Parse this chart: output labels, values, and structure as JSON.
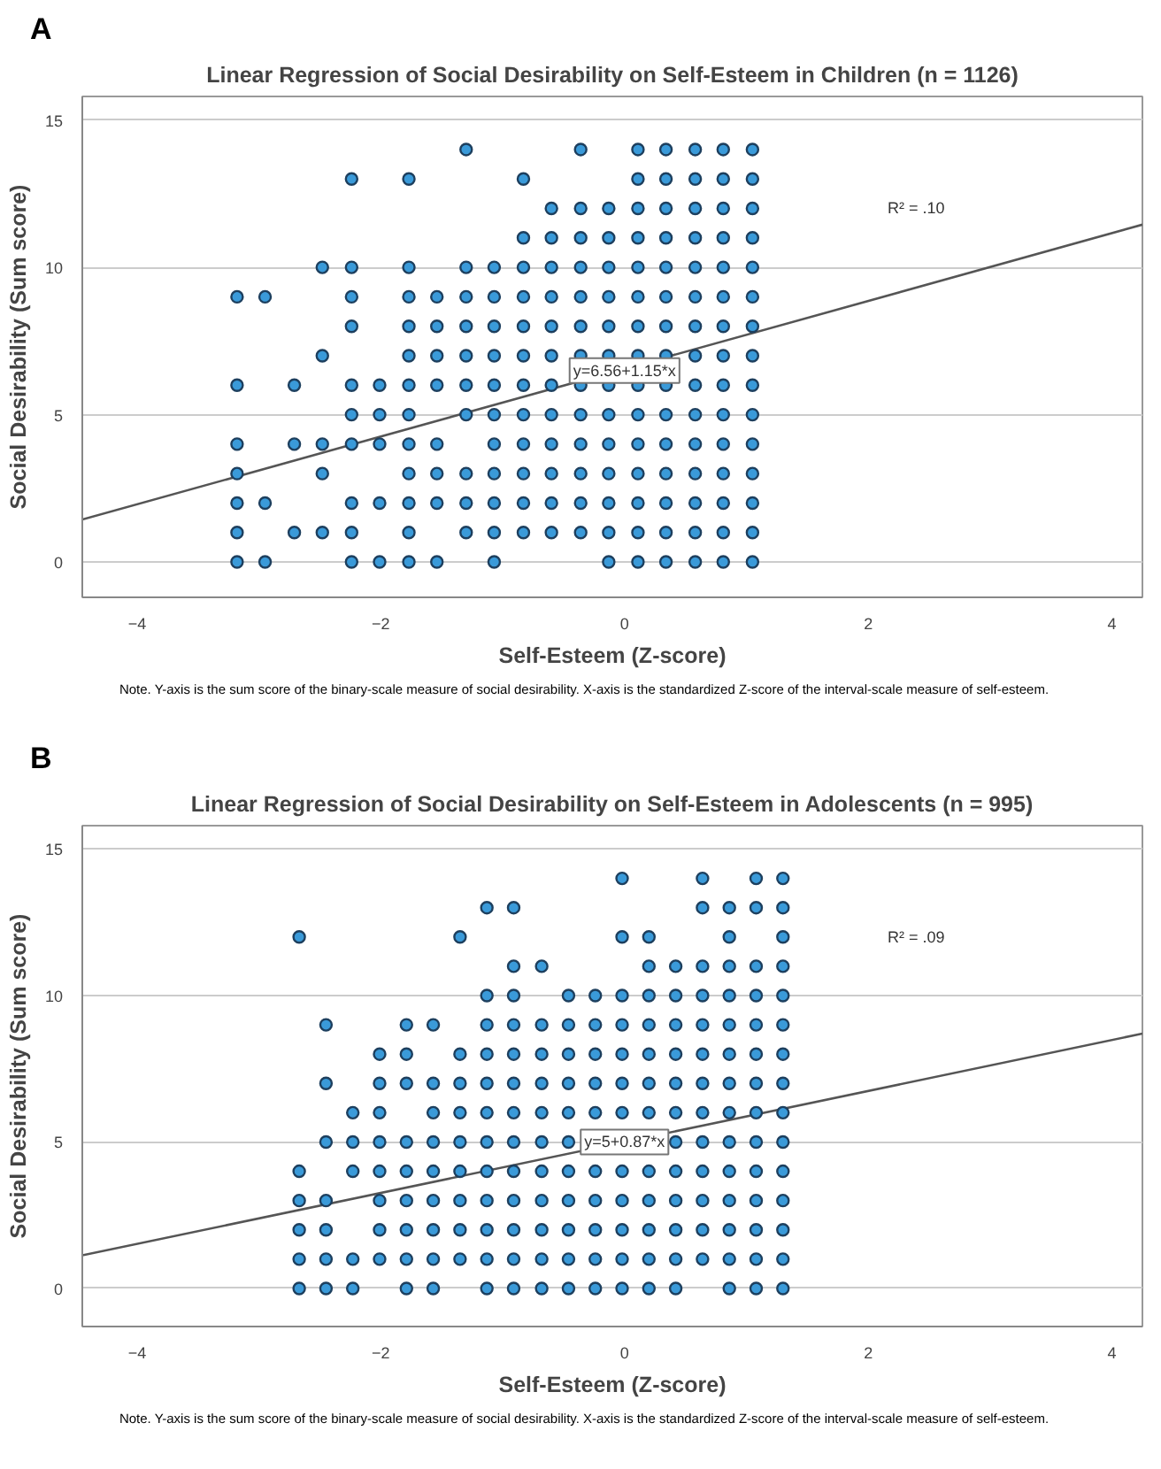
{
  "chart_data": [
    {
      "type": "scatter",
      "title": "Linear Regression of Social Desirability on Self-Esteem in Children (n = 1126)",
      "xlabel": "Self-Esteem (Z-score)",
      "ylabel": "Social Desirability (Sum score)",
      "xlim": [
        -4.45,
        4.25
      ],
      "ylim": [
        -1.2,
        15.8
      ],
      "xticks": [
        -4,
        -2,
        0,
        2,
        4
      ],
      "yticks": [
        0,
        5,
        10,
        15
      ],
      "grid": "y",
      "annotations": [
        "A",
        {
          "text": "y=6.56+1.15*x",
          "x": 0,
          "y": 6.5
        },
        "R² = .10",
        "Note. Y-axis is the sum score of the binary-scale measure of social desirability. X-axis is the standardized Z-score of the interval-scale measure of self-esteem."
      ],
      "series": [
        {
          "color": "#3a9ad9",
          "marker": "circle",
          "x": [
            -3.18,
            -3.18,
            -3.18,
            -3.18,
            -3.18,
            -3.18,
            -3.18,
            -2.95,
            -2.95,
            -2.95,
            -2.71,
            -2.71,
            -2.71,
            -2.48,
            -2.48,
            -2.48,
            -2.48,
            -2.48,
            -2.24,
            -2.24,
            -2.24,
            -2.24,
            -2.24,
            -2.24,
            -2.24,
            -2.24,
            -2.24,
            -2.24,
            -2.01,
            -2.01,
            -2.01,
            -2.01,
            -2.01,
            -1.77,
            -1.77,
            -1.77,
            -1.77,
            -1.77,
            -1.77,
            -1.77,
            -1.77,
            -1.77,
            -1.77,
            -1.77,
            -1.77,
            -1.54,
            -1.54,
            -1.54,
            -1.54,
            -1.54,
            -1.54,
            -1.54,
            -1.54,
            -1.3,
            -1.3,
            -1.3,
            -1.3,
            -1.3,
            -1.3,
            -1.3,
            -1.3,
            -1.3,
            -1.3,
            -1.07,
            -1.07,
            -1.07,
            -1.07,
            -1.07,
            -1.07,
            -1.07,
            -1.07,
            -1.07,
            -1.07,
            -1.07,
            -0.83,
            -0.83,
            -0.83,
            -0.83,
            -0.83,
            -0.83,
            -0.83,
            -0.83,
            -0.83,
            -0.83,
            -0.83,
            -0.83,
            -0.6,
            -0.6,
            -0.6,
            -0.6,
            -0.6,
            -0.6,
            -0.6,
            -0.6,
            -0.6,
            -0.6,
            -0.6,
            -0.6,
            -0.36,
            -0.36,
            -0.36,
            -0.36,
            -0.36,
            -0.36,
            -0.36,
            -0.36,
            -0.36,
            -0.36,
            -0.36,
            -0.36,
            -0.36,
            -0.13,
            -0.13,
            -0.13,
            -0.13,
            -0.13,
            -0.13,
            -0.13,
            -0.13,
            -0.13,
            -0.13,
            -0.13,
            -0.13,
            -0.13,
            0.11,
            0.11,
            0.11,
            0.11,
            0.11,
            0.11,
            0.11,
            0.11,
            0.11,
            0.11,
            0.11,
            0.11,
            0.11,
            0.11,
            0.11,
            0.34,
            0.34,
            0.34,
            0.34,
            0.34,
            0.34,
            0.34,
            0.34,
            0.34,
            0.34,
            0.34,
            0.34,
            0.34,
            0.34,
            0.34,
            0.58,
            0.58,
            0.58,
            0.58,
            0.58,
            0.58,
            0.58,
            0.58,
            0.58,
            0.58,
            0.58,
            0.58,
            0.58,
            0.58,
            0.58,
            0.81,
            0.81,
            0.81,
            0.81,
            0.81,
            0.81,
            0.81,
            0.81,
            0.81,
            0.81,
            0.81,
            0.81,
            0.81,
            0.81,
            0.81,
            1.05,
            1.05,
            1.05,
            1.05,
            1.05,
            1.05,
            1.05,
            1.05,
            1.05,
            1.05,
            1.05,
            1.05,
            1.05,
            1.05,
            1.05
          ],
          "values": [
            9,
            6,
            4,
            3,
            2,
            1,
            0,
            9,
            2,
            0,
            6,
            4,
            1,
            10,
            7,
            4,
            3,
            1,
            13,
            10,
            9,
            8,
            6,
            5,
            4,
            2,
            1,
            0,
            6,
            5,
            4,
            2,
            0,
            13,
            10,
            9,
            8,
            7,
            6,
            5,
            4,
            3,
            2,
            1,
            0,
            9,
            8,
            7,
            6,
            4,
            3,
            2,
            0,
            14,
            10,
            9,
            8,
            7,
            6,
            5,
            3,
            2,
            1,
            10,
            9,
            8,
            7,
            6,
            5,
            4,
            3,
            2,
            1,
            0,
            13,
            11,
            10,
            9,
            8,
            7,
            6,
            5,
            4,
            3,
            2,
            1,
            12,
            11,
            10,
            9,
            8,
            7,
            6,
            5,
            4,
            3,
            2,
            1,
            14,
            12,
            11,
            10,
            9,
            8,
            7,
            6,
            5,
            4,
            3,
            2,
            1,
            12,
            11,
            10,
            9,
            8,
            7,
            6,
            5,
            4,
            3,
            2,
            1,
            0,
            14,
            13,
            12,
            11,
            10,
            9,
            8,
            7,
            6,
            5,
            4,
            3,
            2,
            1,
            0,
            14,
            13,
            12,
            11,
            10,
            9,
            8,
            7,
            6,
            5,
            4,
            3,
            2,
            1,
            0,
            14,
            13,
            12,
            11,
            10,
            9,
            8,
            7,
            6,
            5,
            4,
            3,
            2,
            1,
            0,
            14,
            13,
            12,
            11,
            10,
            9,
            8,
            7,
            6,
            5,
            4,
            3,
            2,
            1,
            0,
            14,
            13,
            12,
            11,
            10,
            9,
            8,
            7,
            6,
            5,
            4,
            3,
            2,
            1,
            0
          ]
        },
        {
          "type": "line",
          "color": "#555555",
          "x": [
            -4.45,
            4.25
          ],
          "values": [
            1.44,
            11.45
          ]
        }
      ]
    },
    {
      "type": "scatter",
      "title": "Linear Regression of Social Desirability on Self-Esteem in Adolescents (n = 995)",
      "xlabel": "Self-Esteem (Z-score)",
      "ylabel": "Social Desirability (Sum score)",
      "xlim": [
        -4.45,
        4.25
      ],
      "ylim": [
        -1.3,
        15.8
      ],
      "xticks": [
        -4,
        -2,
        0,
        2,
        4
      ],
      "yticks": [
        0,
        5,
        10,
        15
      ],
      "grid": "y",
      "annotations": [
        "B",
        {
          "text": "y=5+0.87*x",
          "x": 0,
          "y": 5
        },
        "R² = .09",
        "Note. Y-axis is the sum score of the binary-scale measure of social desirability. X-axis is the standardized Z-score of the interval-scale measure of self-esteem."
      ],
      "series": [
        {
          "color": "#3a9ad9",
          "marker": "circle",
          "x": [
            -2.67,
            -2.67,
            -2.67,
            -2.67,
            -2.67,
            -2.67,
            -2.45,
            -2.45,
            -2.45,
            -2.45,
            -2.45,
            -2.45,
            -2.45,
            -2.23,
            -2.23,
            -2.23,
            -2.23,
            -2.23,
            -2.01,
            -2.01,
            -2.01,
            -2.01,
            -2.01,
            -2.01,
            -2.01,
            -2.01,
            -1.79,
            -1.79,
            -1.79,
            -1.79,
            -1.79,
            -1.79,
            -1.79,
            -1.79,
            -1.79,
            -1.57,
            -1.57,
            -1.57,
            -1.57,
            -1.57,
            -1.57,
            -1.57,
            -1.57,
            -1.57,
            -1.35,
            -1.35,
            -1.35,
            -1.35,
            -1.35,
            -1.35,
            -1.35,
            -1.35,
            -1.35,
            -1.13,
            -1.13,
            -1.13,
            -1.13,
            -1.13,
            -1.13,
            -1.13,
            -1.13,
            -1.13,
            -1.13,
            -1.13,
            -1.13,
            -0.91,
            -0.91,
            -0.91,
            -0.91,
            -0.91,
            -0.91,
            -0.91,
            -0.91,
            -0.91,
            -0.91,
            -0.91,
            -0.91,
            -0.91,
            -0.68,
            -0.68,
            -0.68,
            -0.68,
            -0.68,
            -0.68,
            -0.68,
            -0.68,
            -0.68,
            -0.68,
            -0.68,
            -0.46,
            -0.46,
            -0.46,
            -0.46,
            -0.46,
            -0.46,
            -0.46,
            -0.46,
            -0.46,
            -0.46,
            -0.46,
            -0.24,
            -0.24,
            -0.24,
            -0.24,
            -0.24,
            -0.24,
            -0.24,
            -0.24,
            -0.24,
            -0.24,
            -0.02,
            -0.02,
            -0.02,
            -0.02,
            -0.02,
            -0.02,
            -0.02,
            -0.02,
            -0.02,
            -0.02,
            -0.02,
            -0.02,
            0.2,
            0.2,
            0.2,
            0.2,
            0.2,
            0.2,
            0.2,
            0.2,
            0.2,
            0.2,
            0.2,
            0.2,
            0.42,
            0.42,
            0.42,
            0.42,
            0.42,
            0.42,
            0.42,
            0.42,
            0.42,
            0.42,
            0.42,
            0.42,
            0.64,
            0.64,
            0.64,
            0.64,
            0.64,
            0.64,
            0.64,
            0.64,
            0.64,
            0.64,
            0.64,
            0.64,
            0.64,
            0.86,
            0.86,
            0.86,
            0.86,
            0.86,
            0.86,
            0.86,
            0.86,
            0.86,
            0.86,
            0.86,
            0.86,
            0.86,
            0.86,
            1.08,
            1.08,
            1.08,
            1.08,
            1.08,
            1.08,
            1.08,
            1.08,
            1.08,
            1.08,
            1.08,
            1.08,
            1.08,
            1.08,
            1.3,
            1.3,
            1.3,
            1.3,
            1.3,
            1.3,
            1.3,
            1.3,
            1.3,
            1.3,
            1.3,
            1.3,
            1.3,
            1.3,
            1.3
          ],
          "values": [
            12,
            4,
            3,
            2,
            1,
            0,
            9,
            7,
            5,
            3,
            2,
            1,
            0,
            6,
            5,
            4,
            1,
            0,
            8,
            7,
            6,
            5,
            4,
            3,
            2,
            1,
            9,
            8,
            7,
            5,
            4,
            3,
            2,
            1,
            0,
            9,
            7,
            6,
            5,
            4,
            3,
            2,
            1,
            0,
            12,
            8,
            7,
            6,
            5,
            4,
            3,
            2,
            1,
            13,
            10,
            9,
            8,
            7,
            6,
            5,
            4,
            3,
            2,
            1,
            0,
            13,
            11,
            10,
            9,
            8,
            7,
            6,
            5,
            4,
            3,
            2,
            1,
            0,
            11,
            9,
            8,
            7,
            6,
            5,
            4,
            3,
            2,
            1,
            0,
            10,
            9,
            8,
            7,
            6,
            5,
            4,
            3,
            2,
            1,
            0,
            10,
            9,
            8,
            7,
            6,
            4,
            3,
            2,
            1,
            0,
            14,
            12,
            10,
            9,
            8,
            7,
            6,
            4,
            3,
            2,
            1,
            0,
            12,
            11,
            10,
            9,
            8,
            7,
            6,
            4,
            3,
            2,
            1,
            0,
            11,
            10,
            9,
            8,
            7,
            6,
            5,
            4,
            3,
            2,
            1,
            0,
            14,
            13,
            11,
            10,
            9,
            8,
            7,
            6,
            5,
            4,
            3,
            2,
            1,
            13,
            12,
            11,
            10,
            9,
            8,
            7,
            6,
            5,
            4,
            3,
            2,
            1,
            0,
            14,
            13,
            11,
            10,
            9,
            8,
            7,
            6,
            5,
            4,
            3,
            2,
            1,
            0,
            14,
            13,
            12,
            11,
            10,
            9,
            8,
            7,
            6,
            5,
            4,
            3,
            2,
            1,
            0
          ]
        },
        {
          "type": "line",
          "color": "#555555",
          "x": [
            -4.45,
            4.25
          ],
          "values": [
            1.13,
            8.7
          ]
        }
      ]
    }
  ]
}
